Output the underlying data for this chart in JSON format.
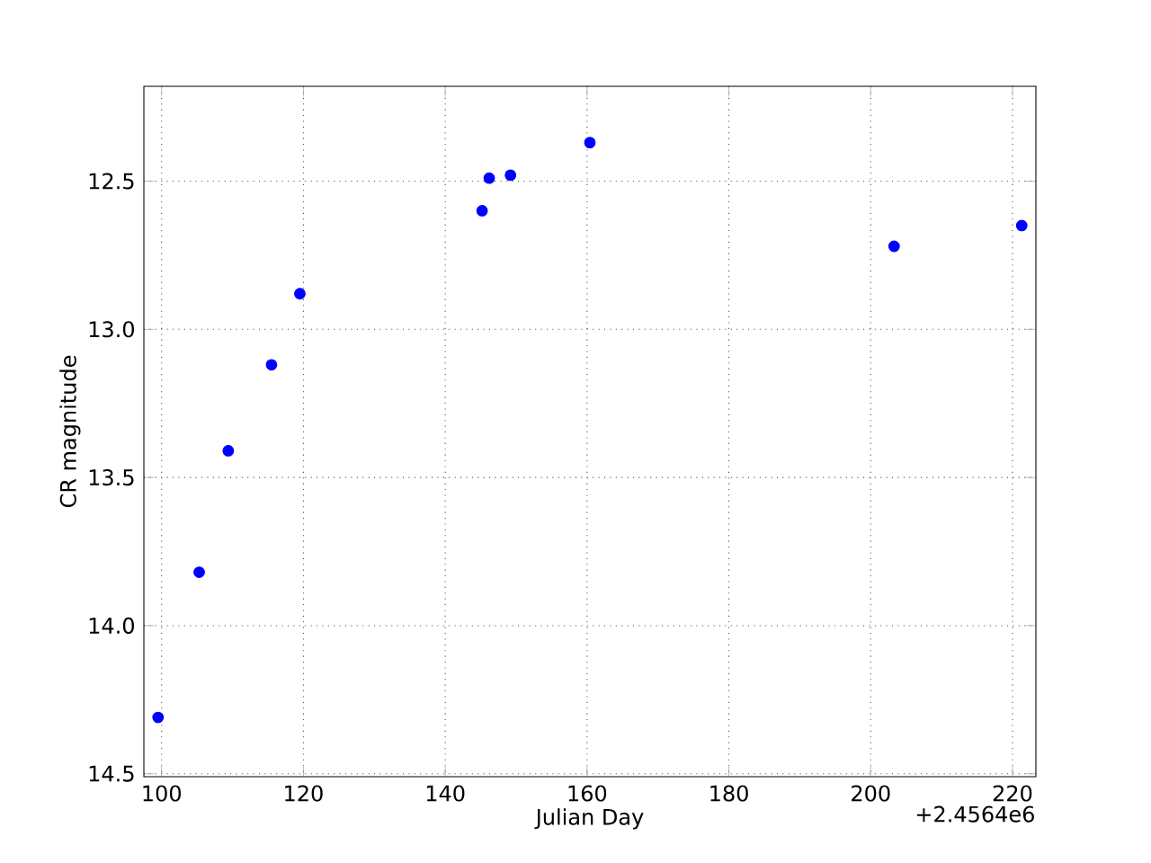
{
  "chart_data": {
    "type": "scatter",
    "xlabel": "Julian Day",
    "ylabel": "CR magnitude",
    "annotations": [
      "+2.4564e6"
    ],
    "x": [
      99.5,
      105.3,
      109.4,
      115.5,
      119.5,
      145.2,
      146.2,
      149.2,
      160.4,
      203.3,
      221.3
    ],
    "series": [
      {
        "color": "#0000ff",
        "values": [
          14.31,
          13.82,
          13.41,
          13.12,
          12.88,
          12.6,
          12.49,
          12.48,
          12.37,
          12.72,
          12.65
        ]
      }
    ],
    "xlim": [
      97.5,
      223.3
    ],
    "ylim": [
      14.51,
      12.18
    ],
    "xticks": [
      100,
      120,
      140,
      160,
      180,
      200,
      220
    ],
    "yticks": [
      12.5,
      {
        "value": 13,
        "label": "13.0"
      },
      13.5,
      {
        "value": 14,
        "label": "14.0"
      },
      14.5
    ],
    "grid": true,
    "marker": "circle"
  }
}
